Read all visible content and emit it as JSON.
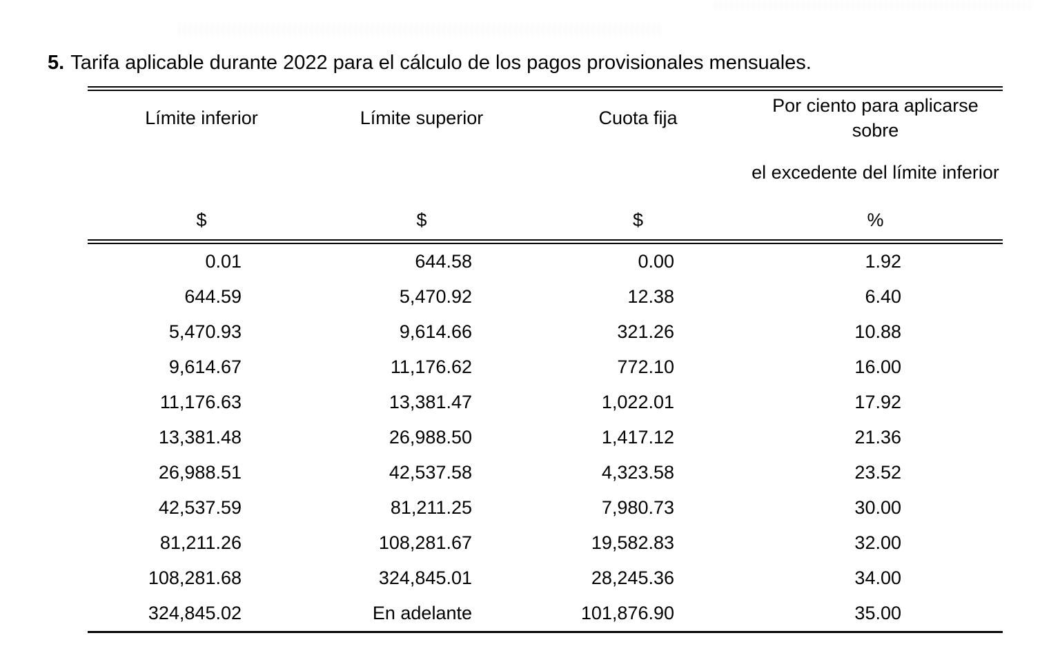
{
  "title": {
    "number": "5.",
    "text": "Tarifa aplicable durante 2022 para el cálculo de los pagos provisionales mensuales."
  },
  "table": {
    "columns": [
      {
        "header": "Límite inferior",
        "subheader": "",
        "unit": "$"
      },
      {
        "header": "Límite superior",
        "subheader": "",
        "unit": "$"
      },
      {
        "header": "Cuota fija",
        "subheader": "",
        "unit": "$"
      },
      {
        "header": "Por ciento para aplicarse sobre",
        "subheader": "el excedente del límite inferior",
        "unit": "%"
      }
    ],
    "rows": [
      [
        "0.01",
        "644.58",
        "0.00",
        "1.92"
      ],
      [
        "644.59",
        "5,470.92",
        "12.38",
        "6.40"
      ],
      [
        "5,470.93",
        "9,614.66",
        "321.26",
        "10.88"
      ],
      [
        "9,614.67",
        "11,176.62",
        "772.10",
        "16.00"
      ],
      [
        "11,176.63",
        "13,381.47",
        "1,022.01",
        "17.92"
      ],
      [
        "13,381.48",
        "26,988.50",
        "1,417.12",
        "21.36"
      ],
      [
        "26,988.51",
        "42,537.58",
        "4,323.58",
        "23.52"
      ],
      [
        "42,537.59",
        "81,211.25",
        "7,980.73",
        "30.00"
      ],
      [
        "81,211.26",
        "108,281.67",
        "19,582.83",
        "32.00"
      ],
      [
        "108,281.68",
        "324,845.01",
        "28,245.36",
        "34.00"
      ],
      [
        "324,845.02",
        "En adelante",
        "101,876.90",
        "35.00"
      ]
    ]
  }
}
